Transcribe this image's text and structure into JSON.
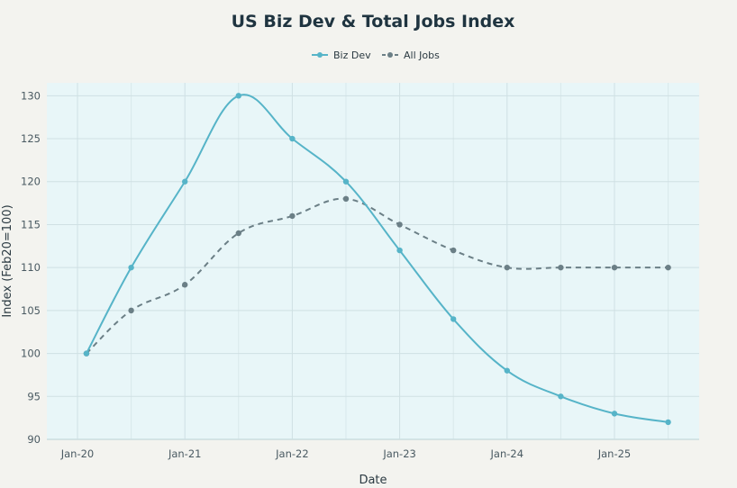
{
  "chart_data": {
    "type": "line",
    "title": "US Biz Dev & Total Jobs Index",
    "xlabel": "Date",
    "ylabel": "Index (Feb20=100)",
    "x_ticks": [
      "Jan-20",
      "Jan-21",
      "Jan-22",
      "Jan-23",
      "Jan-24",
      "Jan-25"
    ],
    "ylim": [
      90,
      131.5
    ],
    "y_ticks": [
      90,
      95,
      100,
      105,
      110,
      115,
      120,
      125,
      130
    ],
    "grid": true,
    "legend_position": "top-center",
    "x": [
      "2020-02",
      "2020-07",
      "2021-01",
      "2021-07",
      "2022-01",
      "2022-07",
      "2023-01",
      "2023-07",
      "2024-01",
      "2024-07",
      "2025-01",
      "2025-07"
    ],
    "series": [
      {
        "name": "Biz Dev",
        "color": "#56b4c8",
        "dash": "solid",
        "values": [
          100,
          110,
          120,
          130,
          125,
          120,
          112,
          104,
          98,
          95,
          93,
          92
        ]
      },
      {
        "name": "All Jobs",
        "color": "#6b7f86",
        "dash": "dashed",
        "values": [
          100,
          105,
          108,
          114,
          116,
          118,
          115,
          112,
          110,
          110,
          110,
          110
        ]
      }
    ]
  }
}
